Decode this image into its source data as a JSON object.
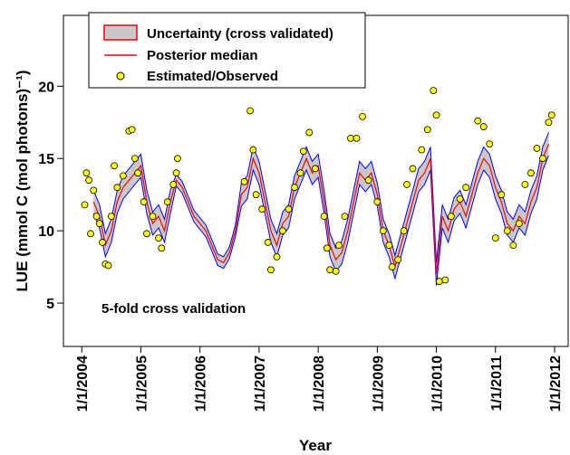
{
  "chart_data": {
    "type": "line",
    "xlabel": "Year",
    "ylabel": "LUE (mmol C (mol photons)⁻¹)",
    "annotation": "5-fold cross validation",
    "xlim": [
      2003.69,
      2012.23
    ],
    "ylim": [
      2,
      24.9
    ],
    "xticks": [
      {
        "value": 2004,
        "label": "1/1/2004"
      },
      {
        "value": 2005,
        "label": "1/1/2005"
      },
      {
        "value": 2006,
        "label": "1/1/2006"
      },
      {
        "value": 2007,
        "label": "1/1/2007"
      },
      {
        "value": 2008,
        "label": "1/1/2008"
      },
      {
        "value": 2009,
        "label": "1/1/2009"
      },
      {
        "value": 2010,
        "label": "1/1/2010"
      },
      {
        "value": 2011,
        "label": "1/1/2011"
      },
      {
        "value": 2012,
        "label": "1/1/2012"
      }
    ],
    "yticks": [
      5,
      10,
      15,
      20
    ],
    "legend": "upper-left",
    "x": [
      2004.2,
      2004.3,
      2004.4,
      2004.5,
      2004.6,
      2004.7,
      2004.8,
      2004.9,
      2005.0,
      2005.1,
      2005.2,
      2005.3,
      2005.4,
      2005.5,
      2005.6,
      2005.7,
      2005.8,
      2005.9,
      2006.0,
      2006.1,
      2006.2,
      2006.3,
      2006.4,
      2006.5,
      2006.6,
      2006.7,
      2006.8,
      2006.9,
      2007.0,
      2007.1,
      2007.2,
      2007.3,
      2007.4,
      2007.5,
      2007.6,
      2007.7,
      2007.8,
      2007.9,
      2008.0,
      2008.1,
      2008.2,
      2008.3,
      2008.4,
      2008.5,
      2008.6,
      2008.7,
      2008.8,
      2008.9,
      2009.0,
      2009.1,
      2009.2,
      2009.3,
      2009.4,
      2009.5,
      2009.6,
      2009.7,
      2009.8,
      2009.9,
      2010.0,
      2010.1,
      2010.2,
      2010.3,
      2010.4,
      2010.5,
      2010.6,
      2010.7,
      2010.8,
      2010.9,
      2011.0,
      2011.1,
      2011.2,
      2011.3,
      2011.4,
      2011.5,
      2011.6,
      2011.7,
      2011.8,
      2011.9
    ],
    "series": [
      {
        "name": "Uncertainty (cross validated)",
        "color": "#c8c8c8",
        "edge_color": "#0000ff",
        "upper": [
          12.8,
          11.8,
          9.8,
          10.8,
          12.8,
          13.8,
          14.3,
          14.8,
          15.3,
          12.8,
          11.3,
          11.8,
          10.8,
          12.8,
          13.9,
          13.4,
          12.4,
          11.4,
          10.9,
          10.4,
          9.4,
          8.4,
          8.2,
          8.9,
          10.4,
          13.3,
          13.8,
          15.8,
          14.8,
          12.8,
          10.8,
          9.8,
          11.3,
          11.8,
          13.8,
          14.8,
          15.8,
          14.8,
          15.3,
          12.8,
          9.8,
          8.8,
          9.3,
          10.8,
          12.8,
          14.8,
          14.3,
          14.8,
          13.3,
          10.8,
          9.8,
          8.3,
          9.8,
          11.3,
          12.8,
          14.3,
          14.8,
          15.8,
          7.8,
          11.8,
          10.8,
          12.3,
          12.8,
          11.8,
          13.3,
          14.8,
          15.8,
          15.3,
          13.8,
          12.8,
          11.3,
          10.8,
          11.8,
          11.3,
          12.8,
          13.8,
          15.8,
          16.8
        ],
        "lower": [
          11.2,
          10.2,
          8.2,
          9.2,
          11.2,
          12.2,
          12.7,
          13.2,
          13.7,
          11.2,
          9.7,
          10.2,
          9.2,
          11.2,
          13.1,
          12.6,
          11.6,
          10.6,
          10.1,
          9.6,
          8.6,
          7.6,
          7.4,
          8.1,
          9.6,
          11.7,
          12.2,
          14.2,
          13.2,
          11.2,
          9.2,
          8.2,
          9.7,
          10.2,
          12.2,
          13.2,
          14.2,
          13.2,
          13.7,
          11.2,
          8.2,
          7.2,
          7.7,
          9.2,
          11.2,
          13.2,
          12.7,
          13.2,
          11.7,
          9.2,
          8.2,
          6.7,
          8.2,
          9.7,
          11.2,
          12.7,
          13.2,
          14.2,
          6.2,
          10.2,
          9.2,
          10.7,
          11.2,
          10.2,
          11.7,
          13.2,
          14.2,
          13.7,
          12.2,
          11.2,
          9.7,
          9.2,
          10.2,
          9.7,
          11.2,
          12.2,
          14.2,
          15.2
        ]
      },
      {
        "name": "Posterior median",
        "color": "#ff0000",
        "values": [
          12,
          11,
          9,
          10,
          12,
          13,
          13.5,
          14,
          14.5,
          12,
          10.5,
          11,
          10,
          12,
          13.5,
          13,
          12,
          11,
          10.5,
          10,
          9,
          8,
          7.8,
          8.5,
          10,
          12.5,
          13,
          15,
          14,
          12,
          10,
          9,
          10.5,
          11,
          13,
          14,
          15,
          14,
          14.5,
          12,
          9,
          8,
          8.5,
          10,
          12,
          14,
          13.5,
          14,
          12.5,
          10,
          9,
          7.5,
          9,
          10.5,
          12,
          13.5,
          14,
          15,
          7,
          11,
          10,
          11.5,
          12,
          11,
          12.5,
          14,
          15,
          14.5,
          13,
          12,
          10.5,
          10,
          11,
          10.5,
          12,
          13,
          15,
          16
        ]
      },
      {
        "name": "Estimated/Observed",
        "color": "#ffff00",
        "edge_color": "#000000",
        "x": [
          2004.05,
          2004.08,
          2004.12,
          2004.15,
          2004.2,
          2004.25,
          2004.3,
          2004.35,
          2004.4,
          2004.45,
          2004.5,
          2004.55,
          2004.6,
          2004.7,
          2004.8,
          2004.85,
          2004.9,
          2004.95,
          2005.05,
          2005.1,
          2005.2,
          2005.3,
          2005.35,
          2005.45,
          2005.55,
          2005.6,
          2005.62,
          2006.75,
          2006.85,
          2006.9,
          2006.95,
          2007.05,
          2007.15,
          2007.2,
          2007.3,
          2007.4,
          2007.5,
          2007.6,
          2007.7,
          2007.75,
          2007.85,
          2007.95,
          2008.1,
          2008.15,
          2008.2,
          2008.3,
          2008.35,
          2008.45,
          2008.55,
          2008.65,
          2008.75,
          2008.85,
          2009.0,
          2009.1,
          2009.2,
          2009.25,
          2009.35,
          2009.45,
          2009.5,
          2009.6,
          2009.75,
          2009.85,
          2009.95,
          2010.0,
          2010.05,
          2010.15,
          2010.25,
          2010.4,
          2010.5,
          2010.7,
          2010.8,
          2010.9,
          2011.0,
          2011.1,
          2011.2,
          2011.3,
          2011.4,
          2011.5,
          2011.6,
          2011.7,
          2011.8,
          2011.9,
          2011.95
        ],
        "values": [
          11.8,
          14,
          13.5,
          9.8,
          12.8,
          11,
          10.5,
          9.2,
          7.7,
          7.6,
          11,
          14.5,
          13,
          13.8,
          16.9,
          17,
          15,
          14,
          12,
          9.8,
          11,
          9.5,
          8.8,
          12,
          13.2,
          14,
          15,
          13.4,
          18.3,
          15.6,
          12.5,
          11.5,
          9.2,
          7.3,
          8.2,
          10,
          11.5,
          13,
          14,
          15.5,
          16.8,
          14.3,
          11,
          8.8,
          7.3,
          7.2,
          9,
          11,
          16.4,
          16.4,
          17.9,
          13.5,
          12,
          10,
          9,
          7.5,
          8,
          10,
          13.2,
          14.3,
          15.6,
          17,
          19.7,
          18,
          6.5,
          6.6,
          11,
          12.2,
          13,
          17.6,
          17.2,
          16,
          9.5,
          12.5,
          10,
          9,
          10.5,
          13.2,
          14,
          15.7,
          15,
          17.5,
          18
        ]
      }
    ]
  }
}
